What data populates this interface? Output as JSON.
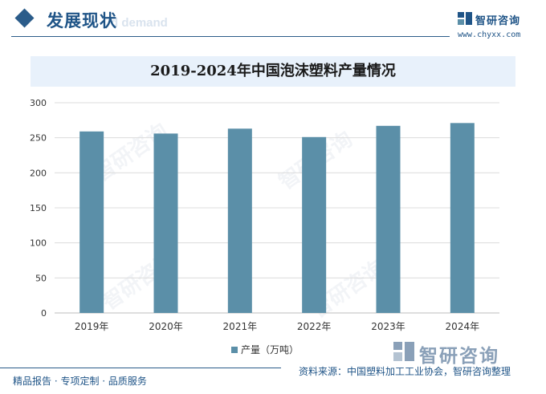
{
  "header": {
    "title": "发展现状",
    "subtitle": "d demand"
  },
  "brand": {
    "name": "智研咨询",
    "url": "www.chyxx.com",
    "big_name": "智研咨询"
  },
  "colors": {
    "primary": "#1f5487",
    "bar": "#5b8fa8",
    "title_bg": "#e8f1fb",
    "grid": "#dcdcdc"
  },
  "chart_data": {
    "type": "bar",
    "title": "2019-2024年中国泡沫塑料产量情况",
    "categories": [
      "2019年",
      "2020年",
      "2021年",
      "2022年",
      "2023年",
      "2024年"
    ],
    "series": [
      {
        "name": "产量（万吨）",
        "values": [
          259,
          256,
          263,
          251,
          267,
          271
        ]
      }
    ],
    "ylim": [
      0,
      300
    ],
    "yticks": [
      0,
      50,
      100,
      150,
      200,
      250,
      300
    ],
    "grid": true,
    "legend_position": "bottom"
  },
  "footer": {
    "left": "精品报告 · 专项定制 · 品质服务",
    "source": "资料来源：中国塑料加工工业协会，智研咨询整理"
  },
  "watermark_text": "智研咨询"
}
